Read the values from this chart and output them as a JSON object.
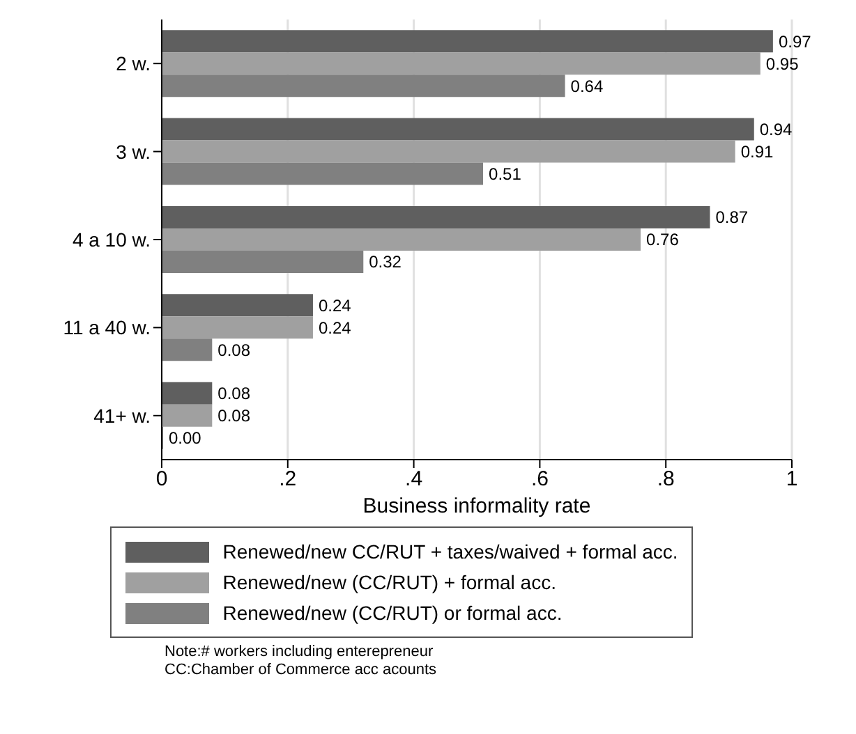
{
  "chart_data": {
    "type": "bar",
    "orientation": "horizontal",
    "xlabel": "Business informality rate",
    "categories": [
      "2 w.",
      "3 w.",
      "4 a 10 w.",
      "11 a 40 w.",
      "41+ w."
    ],
    "series": [
      {
        "name": "Renewed/new CC/RUT + taxes/waived + formal acc.",
        "color": "#5f5f5f",
        "values": [
          0.97,
          0.94,
          0.87,
          0.24,
          0.08
        ],
        "value_labels": [
          "0.97",
          "0.94",
          "0.87",
          "0.24",
          "0.08"
        ]
      },
      {
        "name": "Renewed/new (CC/RUT) + formal acc.",
        "color": "#a0a0a0",
        "values": [
          0.95,
          0.91,
          0.76,
          0.24,
          0.08
        ],
        "value_labels": [
          "0.95",
          "0.91",
          "0.76",
          "0.24",
          "0.08"
        ]
      },
      {
        "name": "Renewed/new (CC/RUT) or formal acc.",
        "color": "#808080",
        "values": [
          0.64,
          0.51,
          0.32,
          0.08,
          0.0
        ],
        "value_labels": [
          "0.64",
          "0.51",
          "0.32",
          "0.08",
          "0.00"
        ]
      }
    ],
    "xlim": [
      0,
      1
    ],
    "xticks": [
      0,
      {
        "value": 0.2,
        "label": ".2"
      },
      {
        "value": 0.4,
        "label": ".4"
      },
      {
        "value": 0.6,
        "label": ".6"
      },
      {
        "value": 0.8,
        "label": ".8"
      },
      1
    ],
    "grid": "x",
    "legend": "bottom",
    "annotations": [
      "Note:# workers including enterepreneur",
      "CC:Chamber of Commerce acc acounts"
    ]
  }
}
